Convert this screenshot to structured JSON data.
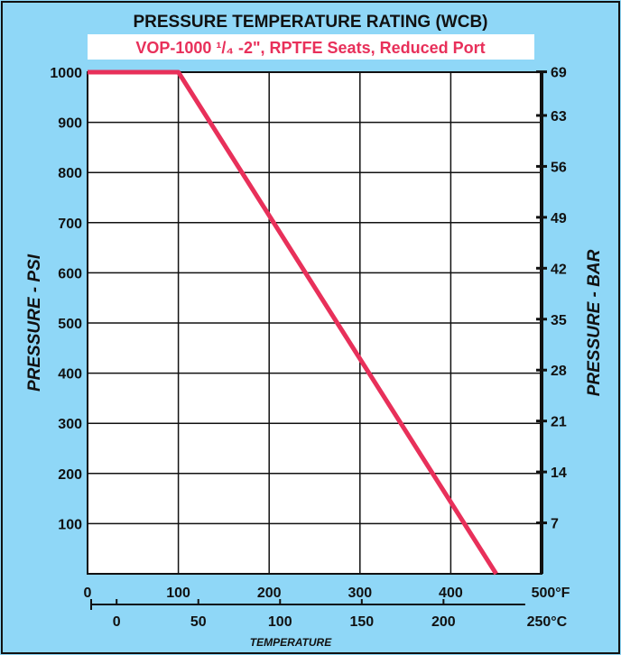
{
  "chart_data": {
    "type": "line",
    "title": "PRESSURE TEMPERATURE RATING (WCB)",
    "subtitle": "VOP-1000 ¹/₄ -2\", RPTFE Seats, Reduced Port",
    "ylabel": "PRESSURE - PSI",
    "y2label": "PRESSURE - BAR",
    "xlabel": "TEMPERATURE",
    "xlim": [
      0,
      500
    ],
    "ylim": [
      0,
      1000
    ],
    "x_ticks_f": [
      "0",
      "100",
      "200",
      "300",
      "400",
      "500°F"
    ],
    "x_ticks_f_values": [
      0,
      100,
      200,
      300,
      400,
      500
    ],
    "x_ticks_c": [
      "0",
      "50",
      "100",
      "150",
      "200",
      "250°C"
    ],
    "x_ticks_c_values": [
      0,
      50,
      100,
      150,
      200,
      250
    ],
    "y_ticks_psi": [
      "100",
      "200",
      "300",
      "400",
      "500",
      "600",
      "700",
      "800",
      "900",
      "1000"
    ],
    "y_ticks_psi_values": [
      100,
      200,
      300,
      400,
      500,
      600,
      700,
      800,
      900,
      1000
    ],
    "y_ticks_bar": [
      "7",
      "14",
      "21",
      "28",
      "35",
      "42",
      "49",
      "56",
      "63",
      "69"
    ],
    "y_ticks_bar_values": [
      7,
      14,
      21,
      28,
      35,
      42,
      49,
      56,
      63,
      69
    ],
    "grid": true,
    "series": [
      {
        "x": [
          0,
          100,
          450
        ],
        "y": [
          1000,
          1000,
          0
        ]
      }
    ],
    "colors": {
      "background": "#8fd7f7",
      "plot": "#ffffff",
      "line": "#e8305a",
      "subtitle_bg": "#ffffff",
      "subtitle_text": "#e8305a",
      "text": "#111111"
    }
  }
}
